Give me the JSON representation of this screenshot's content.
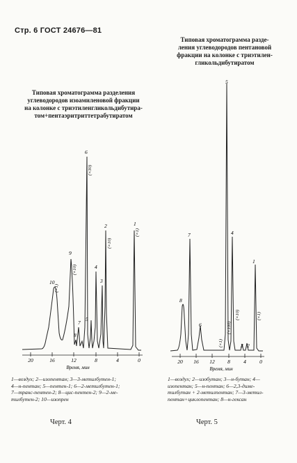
{
  "header": "Стр. 6   ГОСТ 24676—81",
  "left_chart": {
    "title": [
      "Типовая хроматограмма разделения",
      "углеводородов изоамиленовой фракции",
      "на колонке с триэтиленгликольдибутира-",
      "том+пентаэритриттетрабутиратом"
    ],
    "axis_label": "Время, мин",
    "ticks": [
      "20",
      "16",
      "12",
      "8",
      "4",
      "0"
    ],
    "peaks": [
      {
        "label": "1",
        "attenuation": "(×1)"
      },
      {
        "label": "2",
        "attenuation": "(×10)"
      },
      {
        "label": "3",
        "attenuation": ""
      },
      {
        "label": "4",
        "attenuation": ""
      },
      {
        "label": "5",
        "attenuation": ""
      },
      {
        "label": "6",
        "attenuation": "(×30)"
      },
      {
        "label": "7",
        "attenuation": ""
      },
      {
        "label": "8",
        "attenuation": ""
      },
      {
        "label": "9",
        "attenuation": "(×10)"
      },
      {
        "label": "10",
        "attenuation": "(×1)"
      }
    ],
    "legend": [
      "1—воздух; 2—изопентан; 3—3-метилбутен-1;",
      "4—н-пентан; 5—пентен-1; 6—2-метилбутен-1;",
      "7—транс-пентен-2; 8—цис-пентен-2; 9—2-ме-",
      "тилбутен-2; 10—изопрен"
    ],
    "caption": "Черт. 4"
  },
  "right_chart": {
    "title": [
      "Типовая хроматограмма разде-",
      "ления углеводородов пентановой",
      "фракции на колонке с триэтилен-",
      "гликольдибутиратом"
    ],
    "axis_label": "Время, мин",
    "ticks": [
      "20",
      "16",
      "12",
      "8",
      "4",
      "0"
    ],
    "peaks": [
      {
        "label": "1",
        "attenuation": "(×1)"
      },
      {
        "label": "2",
        "attenuation": ""
      },
      {
        "label": "3",
        "attenuation": ""
      },
      {
        "label": "4",
        "attenuation": "(×10)"
      },
      {
        "label": "5",
        "attenuation": "(×100)"
      },
      {
        "label": "6",
        "attenuation": ""
      },
      {
        "label": "7",
        "attenuation": "(×1)"
      },
      {
        "label": "8",
        "attenuation": ""
      }
    ],
    "legend": [
      "1—воздух; 2—изобутан; 3—н-бутан; 4—",
      "изопентан; 5—н-пентан; 6—2,3-диме-",
      "тилбутан + 2-метилпентан; 7—3-метил-",
      "пентан+циклопентан; 8—н-гексан"
    ],
    "caption": "Черт. 5"
  }
}
